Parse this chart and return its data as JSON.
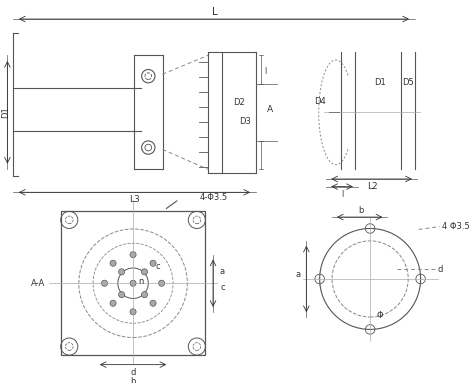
{
  "bg_color": "#ffffff",
  "line_color": "#555555",
  "dim_color": "#666666",
  "text_color": "#333333",
  "dashed_color": "#888888",
  "labels": {
    "L": "L",
    "L2": "L2",
    "L3": "L3",
    "D1": "D1",
    "D2": "D2",
    "D3": "D3",
    "D4": "D4",
    "D5": "D5",
    "A": "A",
    "l1": "l",
    "a": "a",
    "b": "b",
    "c": "c",
    "d": "d",
    "n": "n",
    "phi1": "4-Φ3.5",
    "phi2": "4 Φ3.5",
    "phi3": "Φ",
    "phi4": "d",
    "AA": "A-A"
  }
}
